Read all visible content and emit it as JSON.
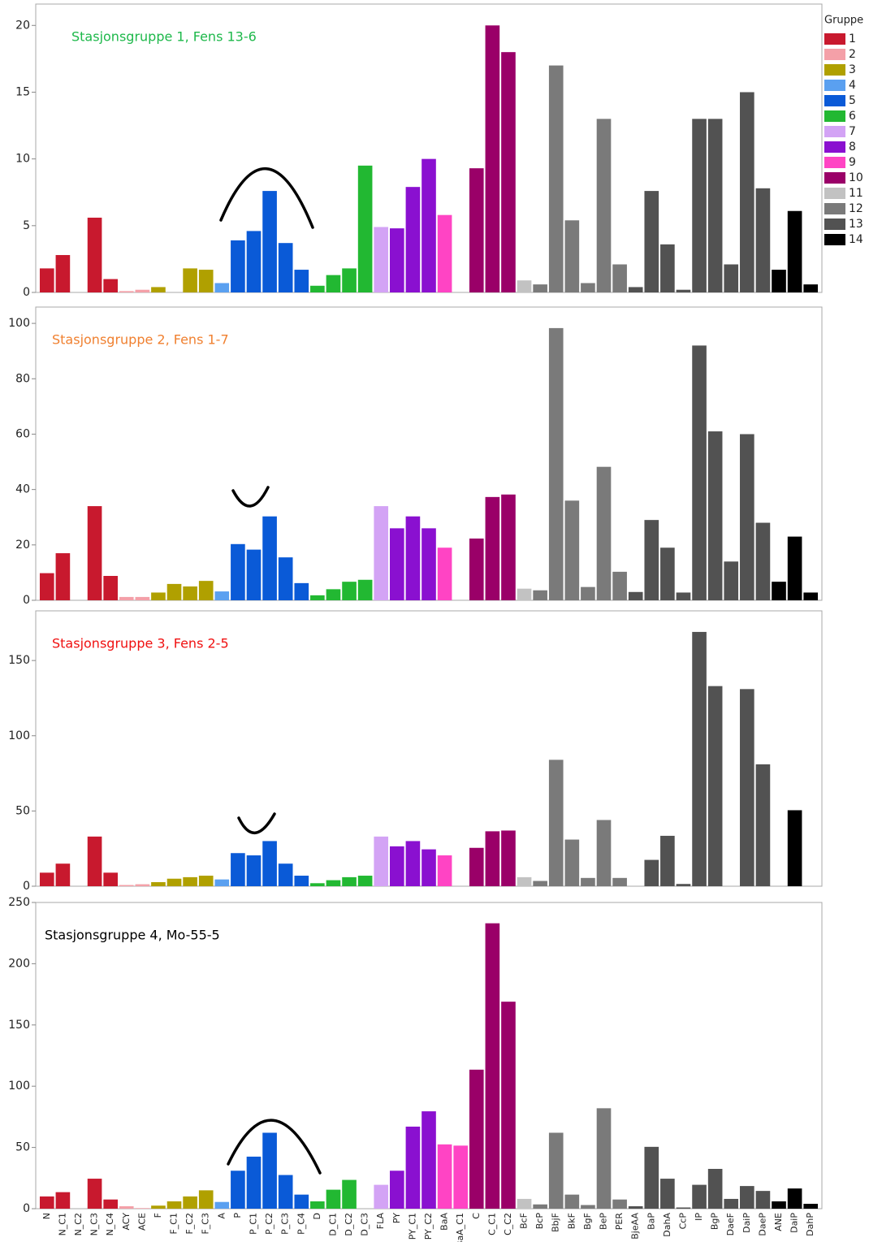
{
  "legend": {
    "title": "Gruppe",
    "items": [
      {
        "label": 1,
        "color": "#c8192e"
      },
      {
        "label": 2,
        "color": "#f4a0a8"
      },
      {
        "label": 3,
        "color": "#b0a000"
      },
      {
        "label": 4,
        "color": "#5aa0f0"
      },
      {
        "label": 5,
        "color": "#0a5ad7"
      },
      {
        "label": 6,
        "color": "#22b832"
      },
      {
        "label": 7,
        "color": "#d3a3f5"
      },
      {
        "label": 8,
        "color": "#8a10d0"
      },
      {
        "label": 9,
        "color": "#ff44c4"
      },
      {
        "label": 10,
        "color": "#9a0068"
      },
      {
        "label": 11,
        "color": "#c2c2c2"
      },
      {
        "label": 12,
        "color": "#7a7a7a"
      },
      {
        "label": 13,
        "color": "#525252"
      },
      {
        "label": 14,
        "color": "#000000"
      }
    ]
  },
  "chart_data": [
    {
      "type": "bar",
      "title": "Stasjonsgruppe 1, Fens 13-6",
      "title_color": "#1db84a",
      "ylim": [
        0,
        21.6
      ],
      "yticks": [
        0,
        5,
        10,
        15,
        20
      ],
      "values": [
        1.8,
        2.8,
        null,
        5.6,
        1.0,
        0.1,
        0.2,
        0.4,
        null,
        1.8,
        1.7,
        0.7,
        3.9,
        4.6,
        7.6,
        3.7,
        1.7,
        0.5,
        1.3,
        1.8,
        9.5,
        4.9,
        4.8,
        7.9,
        10.0,
        5.8,
        null,
        9.3,
        20.0,
        18.0,
        0.9,
        0.6,
        17.0,
        5.4,
        0.7,
        13.0,
        2.1,
        0.4,
        7.6,
        3.6,
        0.2,
        13.0,
        13.0,
        2.1,
        15.0,
        7.8,
        1.7,
        6.1,
        0.6
      ]
    },
    {
      "type": "bar",
      "title": "Stasjonsgruppe 2, Fens 1-7",
      "title_color": "#f08030",
      "ylim": [
        0,
        105.9
      ],
      "yticks": [
        0,
        20,
        40,
        60,
        80,
        100
      ],
      "values": [
        9.8,
        17,
        null,
        34,
        8.8,
        1.2,
        1.2,
        2.8,
        5.9,
        5,
        7,
        3.2,
        20.3,
        18.3,
        30.3,
        15.5,
        6.2,
        1.8,
        4,
        6.7,
        7.4,
        34,
        26,
        30.3,
        26,
        19,
        null,
        22.3,
        37.3,
        38.2,
        4.2,
        3.6,
        98.3,
        36,
        4.8,
        48.2,
        10.3,
        3,
        29,
        19,
        2.8,
        92,
        61,
        14,
        60,
        28,
        6.7,
        23,
        2.8
      ]
    },
    {
      "type": "bar",
      "title": "Stasjonsgruppe 3, Fens 2-5",
      "title_color": "#f01010",
      "ylim": [
        0,
        183
      ],
      "yticks": [
        0,
        50,
        100,
        150
      ],
      "values": [
        9,
        15,
        null,
        33,
        9,
        0.8,
        1.3,
        2.7,
        5,
        6,
        7,
        4.5,
        22,
        20.5,
        30,
        15,
        7,
        2,
        4,
        6,
        7,
        33,
        26.5,
        30,
        24.5,
        20.5,
        null,
        25.5,
        36.5,
        37,
        6,
        3.5,
        84,
        31,
        5.5,
        44,
        5.5,
        null,
        17.5,
        33.5,
        1.5,
        169,
        133,
        null,
        131,
        81,
        null,
        50.5,
        null
      ]
    },
    {
      "type": "bar",
      "title": "Stasjonsgruppe 4, Mo-55-5",
      "title_color": "#000000",
      "ylim": [
        0,
        250
      ],
      "yticks": [
        0,
        50,
        100,
        150,
        200,
        250
      ],
      "categories": [
        "N",
        "N_C1",
        "N_C2",
        "N_C3",
        "N_C4",
        "ACY",
        "ACE",
        "F",
        "F_C1",
        "F_C2",
        "F_C3",
        "A",
        "P",
        "P_C1",
        "P_C2",
        "P_C3",
        "P_C4",
        "D",
        "D_C1",
        "D_C2",
        "D_C3",
        "FLA",
        "PY",
        "PY_C1",
        "PY_C2",
        "BaA",
        "BaA_C1",
        "C",
        "C_C1",
        "C_C2",
        "BcF",
        "BcP",
        "BbjF",
        "BkF",
        "BgF",
        "BeP",
        "PER",
        "BjeAA",
        "BaP",
        "DahA",
        "CcP",
        "IP",
        "BgP",
        "DaeF",
        "DaiP",
        "DaeP",
        "ANE",
        "DaiP",
        "DahP"
      ],
      "groups": [
        1,
        1,
        1,
        1,
        1,
        2,
        2,
        3,
        3,
        3,
        3,
        4,
        5,
        5,
        5,
        5,
        5,
        6,
        6,
        6,
        6,
        7,
        8,
        8,
        8,
        9,
        9,
        10,
        10,
        10,
        11,
        12,
        12,
        12,
        12,
        12,
        12,
        13,
        13,
        13,
        13,
        13,
        13,
        13,
        13,
        13,
        14,
        14,
        14
      ],
      "values": [
        10,
        13.5,
        null,
        24.5,
        7.5,
        2,
        0.5,
        2.5,
        6,
        10,
        15,
        5.5,
        31,
        42.5,
        62,
        27.5,
        11.5,
        6,
        15.5,
        23.5,
        null,
        19.5,
        31,
        67,
        79.5,
        52.5,
        51.5,
        113.5,
        233,
        169,
        8,
        3.5,
        62,
        11.5,
        3,
        82,
        7.5,
        2,
        50.5,
        24.5,
        1,
        19.5,
        32.5,
        8,
        18.5,
        14.5,
        6,
        16.5,
        4
      ]
    }
  ]
}
